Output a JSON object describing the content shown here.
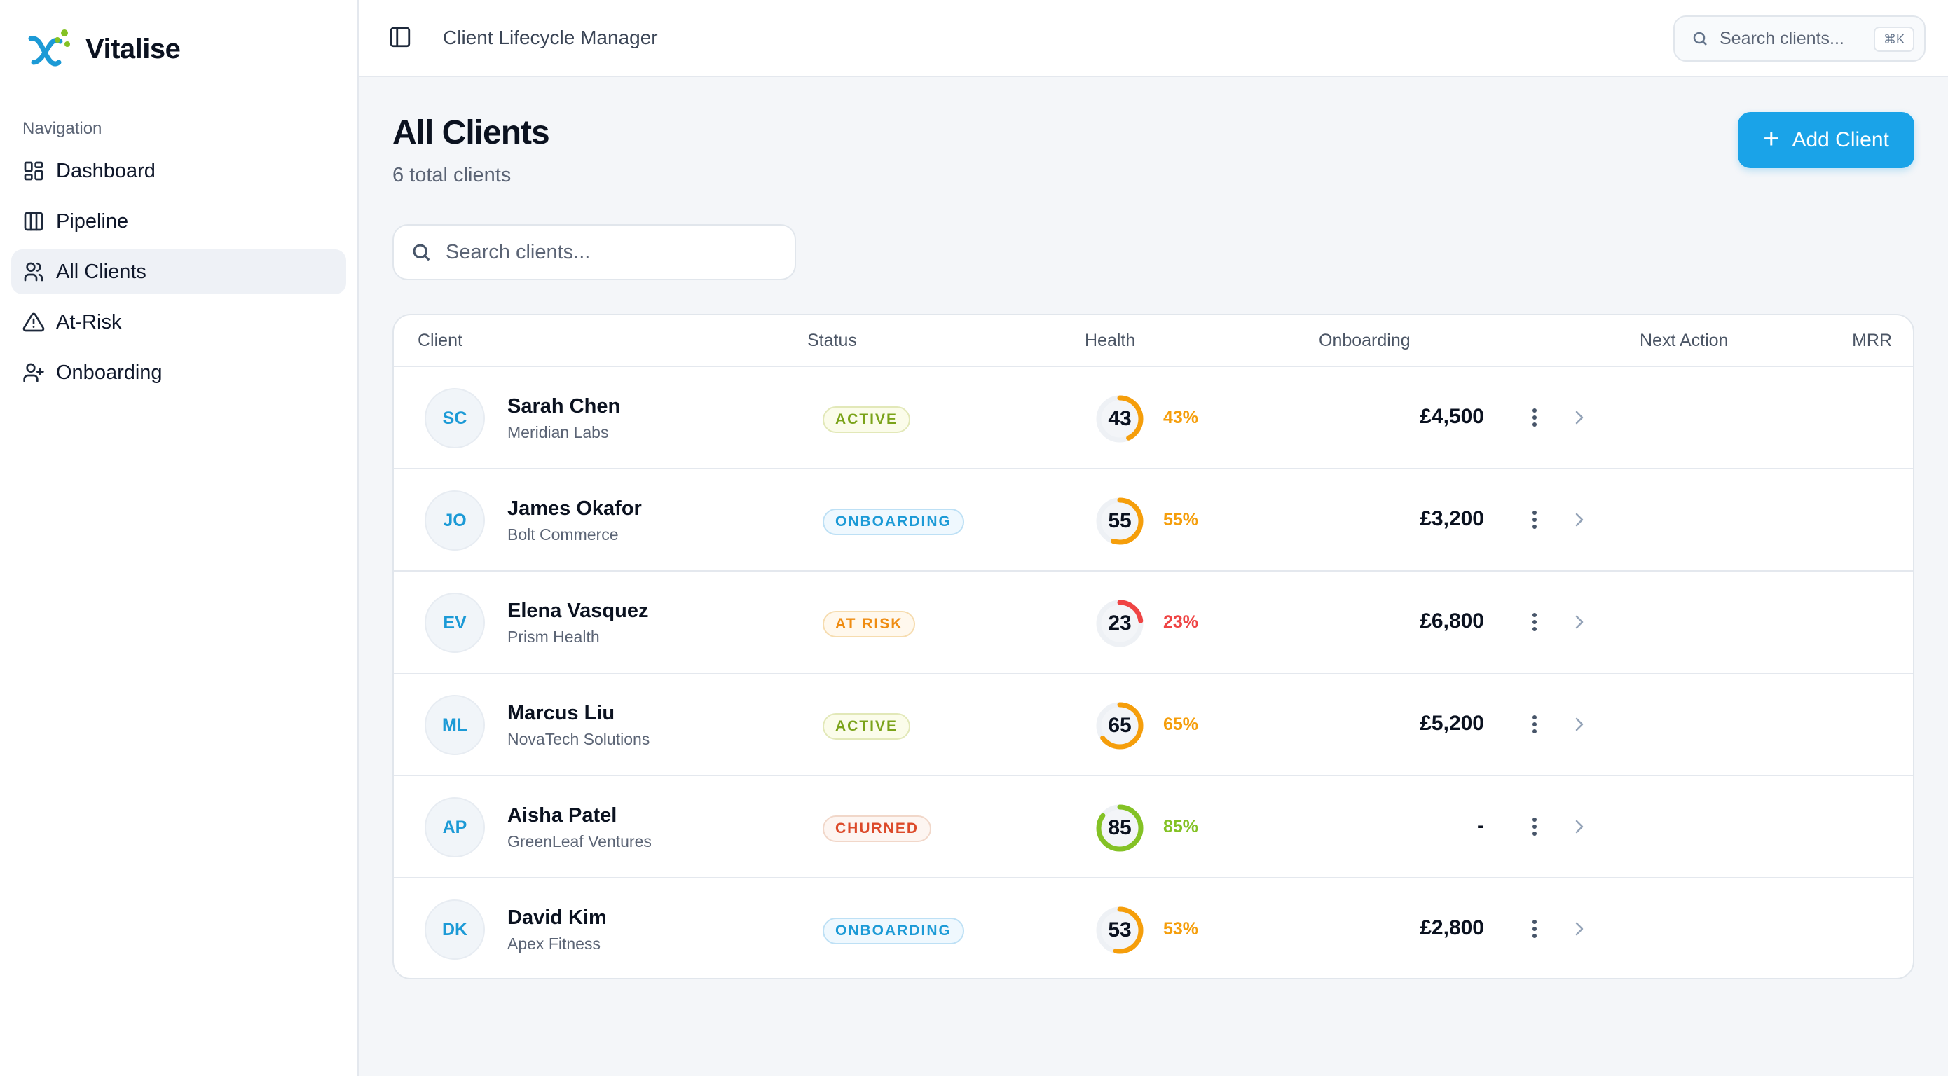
{
  "brand": {
    "name": "Vitalise"
  },
  "sidebar": {
    "heading": "Navigation",
    "items": [
      {
        "label": "Dashboard",
        "icon": "dashboard-icon"
      },
      {
        "label": "Pipeline",
        "icon": "pipeline-icon"
      },
      {
        "label": "All Clients",
        "icon": "users-icon",
        "active": true
      },
      {
        "label": "At-Risk",
        "icon": "warning-icon"
      },
      {
        "label": "Onboarding",
        "icon": "user-plus-icon"
      }
    ]
  },
  "topbar": {
    "title": "Client Lifecycle Manager",
    "search_placeholder": "Search clients...",
    "shortcut": "⌘K"
  },
  "main": {
    "title": "All Clients",
    "subtitle": "6 total clients",
    "add_button": "Add Client",
    "search_placeholder": "Search clients..."
  },
  "table": {
    "columns": [
      "Client",
      "Status",
      "Health",
      "Onboarding",
      "Next Action",
      "MRR"
    ],
    "rows": [
      {
        "initials": "SC",
        "name": "Sarah Chen",
        "company": "Meridian Labs",
        "status": "ACTIVE",
        "status_kind": "active",
        "health": 43,
        "health_pct": "43%",
        "mrr": "£4,500"
      },
      {
        "initials": "JO",
        "name": "James Okafor",
        "company": "Bolt Commerce",
        "status": "ONBOARDING",
        "status_kind": "onboarding",
        "health": 55,
        "health_pct": "55%",
        "mrr": "£3,200"
      },
      {
        "initials": "EV",
        "name": "Elena Vasquez",
        "company": "Prism Health",
        "status": "AT RISK",
        "status_kind": "at-risk",
        "health": 23,
        "health_pct": "23%",
        "mrr": "£6,800"
      },
      {
        "initials": "ML",
        "name": "Marcus Liu",
        "company": "NovaTech Solutions",
        "status": "ACTIVE",
        "status_kind": "active",
        "health": 65,
        "health_pct": "65%",
        "mrr": "£5,200"
      },
      {
        "initials": "AP",
        "name": "Aisha Patel",
        "company": "GreenLeaf Ventures",
        "status": "CHURNED",
        "status_kind": "churned",
        "health": 85,
        "health_pct": "85%",
        "mrr": "-"
      },
      {
        "initials": "DK",
        "name": "David Kim",
        "company": "Apex Fitness",
        "status": "ONBOARDING",
        "status_kind": "onboarding",
        "health": 53,
        "health_pct": "53%",
        "mrr": "£2,800"
      }
    ]
  },
  "colors": {
    "accent": "#1aa3e8",
    "health_low": "#ef4444",
    "health_mid": "#f59e0b",
    "health_high": "#84c225"
  }
}
